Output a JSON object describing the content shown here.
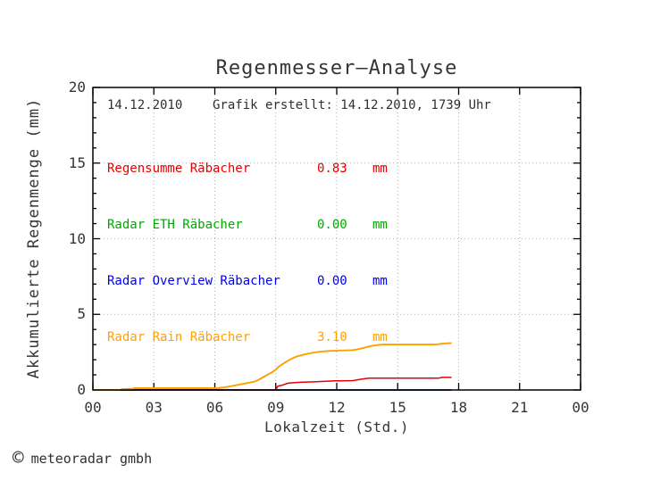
{
  "title": "Regenmesser—Analyse",
  "header": {
    "date": "14.12.2010",
    "created": "Grafik erstellt: 14.12.2010, 1739 Uhr"
  },
  "footer": {
    "copyright_symbol": "©",
    "copyright_text": "meteoradar gmbh"
  },
  "unit": "mm",
  "colors": {
    "frame": "#000000",
    "grid": "#aeaeae",
    "text": "#2f2f2f"
  },
  "chart_data": {
    "type": "line",
    "title": "Regenmesser—Analyse",
    "xlabel": "Lokalzeit (Std.)",
    "ylabel": "Akkumulierte Regenmenge (mm)",
    "xlim": [
      0,
      24
    ],
    "ylim": [
      0,
      20
    ],
    "x_major_ticks": [
      0,
      3,
      6,
      9,
      12,
      15,
      18,
      21,
      24
    ],
    "x_tick_labels": [
      "00",
      "03",
      "06",
      "09",
      "12",
      "15",
      "18",
      "21",
      "00"
    ],
    "y_major_ticks": [
      0,
      5,
      10,
      15,
      20
    ],
    "y_tick_labels": [
      "0",
      "5",
      "10",
      "15",
      "20"
    ],
    "y_minor_step": 1,
    "grid": "dotted lines at every major tick",
    "legend_position": "top-left inside plot",
    "series": [
      {
        "name": "Regensumme Räbacher",
        "total_mm": "0.83",
        "color": "#e60000",
        "points": [
          [
            0,
            0
          ],
          [
            9.0,
            0
          ],
          [
            9.1,
            0.25
          ],
          [
            9.35,
            0.33
          ],
          [
            9.6,
            0.45
          ],
          [
            9.85,
            0.48
          ],
          [
            10.3,
            0.52
          ],
          [
            11.0,
            0.55
          ],
          [
            11.9,
            0.6
          ],
          [
            12.8,
            0.62
          ],
          [
            13.05,
            0.68
          ],
          [
            13.4,
            0.75
          ],
          [
            13.6,
            0.78
          ],
          [
            17.0,
            0.78
          ],
          [
            17.2,
            0.83
          ],
          [
            17.65,
            0.83
          ]
        ]
      },
      {
        "name": "Radar ETH Räbacher",
        "total_mm": "0.00",
        "color": "#00a800",
        "points": [
          [
            0,
            0
          ],
          [
            17.65,
            0
          ]
        ]
      },
      {
        "name": "Radar Overview Räbacher",
        "total_mm": "0.00",
        "color": "#0000ee",
        "points": [
          [
            0,
            0
          ],
          [
            17.65,
            0
          ]
        ]
      },
      {
        "name": "Radar Rain Räbacher",
        "total_mm": "3.10",
        "color": "#ff9f00",
        "points": [
          [
            0,
            0
          ],
          [
            1.3,
            0
          ],
          [
            1.45,
            0.06
          ],
          [
            1.95,
            0.08
          ],
          [
            2.05,
            0.12
          ],
          [
            6.1,
            0.12
          ],
          [
            6.5,
            0.18
          ],
          [
            6.9,
            0.28
          ],
          [
            7.3,
            0.38
          ],
          [
            7.6,
            0.46
          ],
          [
            7.95,
            0.55
          ],
          [
            8.2,
            0.7
          ],
          [
            8.45,
            0.9
          ],
          [
            8.65,
            1.05
          ],
          [
            8.85,
            1.2
          ],
          [
            9.0,
            1.35
          ],
          [
            9.15,
            1.55
          ],
          [
            9.35,
            1.72
          ],
          [
            9.55,
            1.9
          ],
          [
            9.75,
            2.05
          ],
          [
            10.0,
            2.2
          ],
          [
            10.4,
            2.35
          ],
          [
            10.75,
            2.45
          ],
          [
            11.1,
            2.52
          ],
          [
            11.5,
            2.57
          ],
          [
            12.0,
            2.6
          ],
          [
            12.75,
            2.63
          ],
          [
            13.0,
            2.68
          ],
          [
            13.3,
            2.78
          ],
          [
            13.6,
            2.88
          ],
          [
            13.9,
            2.95
          ],
          [
            14.2,
            3.0
          ],
          [
            16.9,
            3.0
          ],
          [
            17.1,
            3.05
          ],
          [
            17.35,
            3.08
          ],
          [
            17.65,
            3.1
          ]
        ]
      }
    ]
  }
}
